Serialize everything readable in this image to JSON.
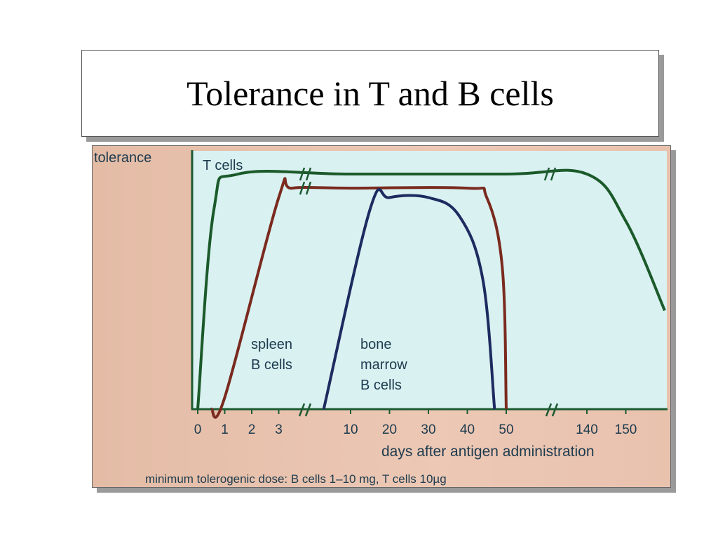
{
  "title": "Tolerance in T and B cells",
  "chart_data": {
    "type": "line",
    "ylabel": "tolerance",
    "xlabel": "days after antigen administration",
    "x_ticks": [
      "0",
      "1",
      "2",
      "3",
      "10",
      "20",
      "30",
      "40",
      "50",
      "140",
      "150"
    ],
    "x_axis_breaks": [
      "between 3 and 10",
      "between 50 and 140"
    ],
    "footnote": "minimum tolerogenic dose: B cells 1–10 mg, T cells 10µg",
    "series": [
      {
        "name": "T cells",
        "color": "#1b5a2a",
        "labels": [
          "T cells"
        ],
        "points": [
          [
            "0",
            0
          ],
          [
            "0.6",
            0.85
          ],
          [
            "1.5",
            1.0
          ],
          [
            "10",
            1.0
          ],
          [
            "50",
            1.0
          ],
          [
            "140",
            1.0
          ],
          [
            "150",
            0.8
          ],
          [
            "160",
            0.42
          ]
        ]
      },
      {
        "name": "spleen B cells",
        "color": "#7a2a1e",
        "labels": [
          "spleen",
          "B cells"
        ],
        "points": [
          [
            "0.5",
            0
          ],
          [
            "1",
            0.05
          ],
          [
            "3",
            0.9
          ],
          [
            "3.5",
            0.94
          ],
          [
            "10",
            0.94
          ],
          [
            "40",
            0.94
          ],
          [
            "45",
            0.9
          ],
          [
            "49",
            0.6
          ],
          [
            "50",
            0
          ]
        ]
      },
      {
        "name": "bone marrow B cells",
        "color": "#1e2b60",
        "labels": [
          "bone",
          "marrow",
          "B cells"
        ],
        "points": [
          [
            "7",
            0
          ],
          [
            "15",
            0.85
          ],
          [
            "20",
            0.9
          ],
          [
            "30",
            0.9
          ],
          [
            "38",
            0.82
          ],
          [
            "44",
            0.55
          ],
          [
            "47",
            0
          ]
        ]
      }
    ]
  }
}
